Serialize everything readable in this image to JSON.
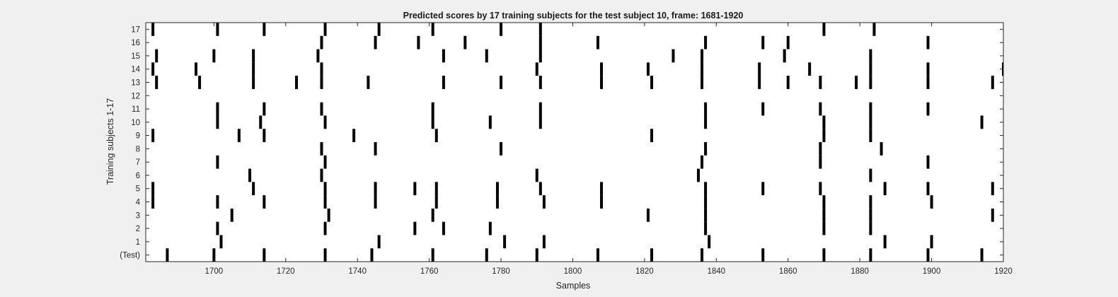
{
  "chart_data": {
    "type": "heatmap",
    "title": "Predicted scores by 17 training subjects for the test subject 10, frame: 1681-1920",
    "xlabel": "Samples",
    "ylabel": "Training subjects 1-17",
    "xlim": [
      1681,
      1920
    ],
    "x_ticks": [
      "1700",
      "1720",
      "1740",
      "1760",
      "1780",
      "1800",
      "1820",
      "1840",
      "1860",
      "1880",
      "1900",
      "1920"
    ],
    "rows": [
      "(Test)",
      "1",
      "2",
      "3",
      "4",
      "5",
      "6",
      "7",
      "8",
      "9",
      "10",
      "11",
      "12",
      "13",
      "14",
      "15",
      "16",
      "17"
    ],
    "grid": false,
    "colors": {
      "marker": "#000000",
      "background": "#ffffff",
      "figure": "#f0f0f0"
    },
    "series": [
      {
        "row": "(Test)",
        "x": [
          1687,
          1700,
          1714,
          1731,
          1744,
          1761,
          1776,
          1790,
          1807,
          1822,
          1836,
          1853,
          1870,
          1883,
          1899,
          1914
        ]
      },
      {
        "row": "1",
        "x": [
          1702,
          1746,
          1781,
          1792,
          1838,
          1887,
          1900
        ]
      },
      {
        "row": "2",
        "x": [
          1701,
          1731,
          1756,
          1764,
          1777,
          1837,
          1870,
          1883
        ]
      },
      {
        "row": "3",
        "x": [
          1705,
          1732,
          1761,
          1821,
          1837,
          1870,
          1883,
          1917
        ]
      },
      {
        "row": "4",
        "x": [
          1683,
          1701,
          1714,
          1731,
          1745,
          1762,
          1779,
          1792,
          1808,
          1837,
          1870,
          1883,
          1900
        ]
      },
      {
        "row": "5",
        "x": [
          1683,
          1711,
          1731,
          1745,
          1756,
          1762,
          1779,
          1791,
          1808,
          1837,
          1853,
          1869,
          1887,
          1899,
          1917
        ]
      },
      {
        "row": "6",
        "x": [
          1710,
          1730,
          1790,
          1835,
          1883
        ]
      },
      {
        "row": "7",
        "x": [
          1701,
          1731,
          1836,
          1869,
          1899
        ]
      },
      {
        "row": "8",
        "x": [
          1730,
          1745,
          1780,
          1837,
          1869,
          1886
        ]
      },
      {
        "row": "9",
        "x": [
          1683,
          1707,
          1714,
          1739,
          1762,
          1822,
          1870,
          1883
        ]
      },
      {
        "row": "10",
        "x": [
          1701,
          1713,
          1731,
          1761,
          1777,
          1791,
          1837,
          1870,
          1883,
          1914
        ]
      },
      {
        "row": "11",
        "x": [
          1701,
          1714,
          1730,
          1761,
          1791,
          1837,
          1853,
          1869,
          1883,
          1899
        ]
      },
      {
        "row": "12",
        "x": []
      },
      {
        "row": "13",
        "x": [
          1684,
          1696,
          1711,
          1723,
          1730,
          1743,
          1764,
          1780,
          1791,
          1808,
          1822,
          1836,
          1852,
          1860,
          1869,
          1879,
          1883,
          1899,
          1917
        ]
      },
      {
        "row": "14",
        "x": [
          1683,
          1695,
          1711,
          1730,
          1790,
          1808,
          1821,
          1836,
          1852,
          1866,
          1883,
          1899,
          1920
        ]
      },
      {
        "row": "15",
        "x": [
          1684,
          1700,
          1711,
          1729,
          1764,
          1776,
          1791,
          1828,
          1836,
          1859,
          1883
        ]
      },
      {
        "row": "16",
        "x": [
          1730,
          1745,
          1757,
          1770,
          1791,
          1807,
          1837,
          1853,
          1860,
          1899
        ]
      },
      {
        "row": "17",
        "x": [
          1683,
          1701,
          1714,
          1731,
          1746,
          1761,
          1780,
          1791,
          1870,
          1884
        ]
      }
    ]
  }
}
